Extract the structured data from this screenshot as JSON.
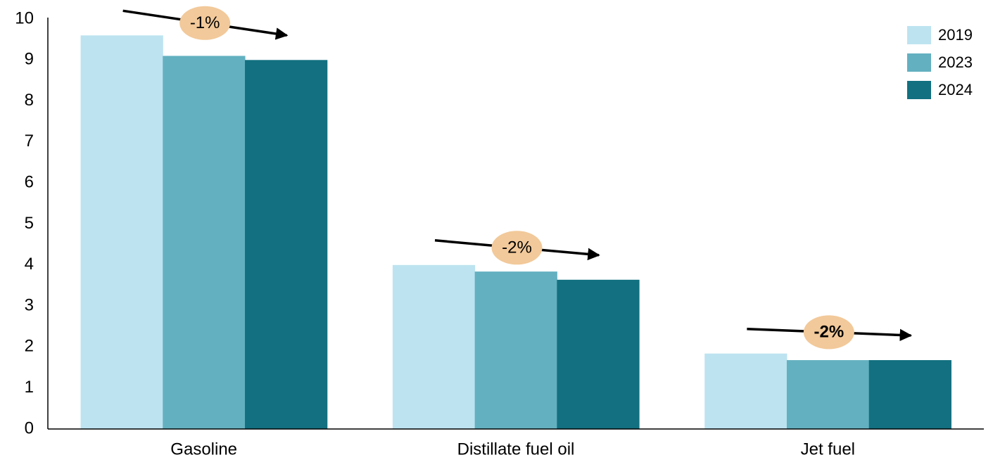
{
  "chart_data": {
    "type": "bar",
    "categories": [
      "Gasoline",
      "Distillate fuel oil",
      "Jet fuel"
    ],
    "series": [
      {
        "name": "2019",
        "color": "#bde3f0",
        "values": [
          9.6,
          4.0,
          1.84
        ]
      },
      {
        "name": "2023",
        "color": "#63b0c0",
        "values": [
          9.1,
          3.84,
          1.68
        ]
      },
      {
        "name": "2024",
        "color": "#127080",
        "values": [
          9.0,
          3.64,
          1.68
        ]
      }
    ],
    "ylim": [
      0,
      10
    ],
    "yticks": [
      0,
      1,
      2,
      3,
      4,
      5,
      6,
      7,
      8,
      9,
      10
    ],
    "grid": false,
    "legend": "upper right",
    "annotations": [
      "-1%",
      "-2%",
      "-2%"
    ],
    "annotation_bold": [
      false,
      false,
      true
    ],
    "annotation_color": "#f2c99a"
  }
}
